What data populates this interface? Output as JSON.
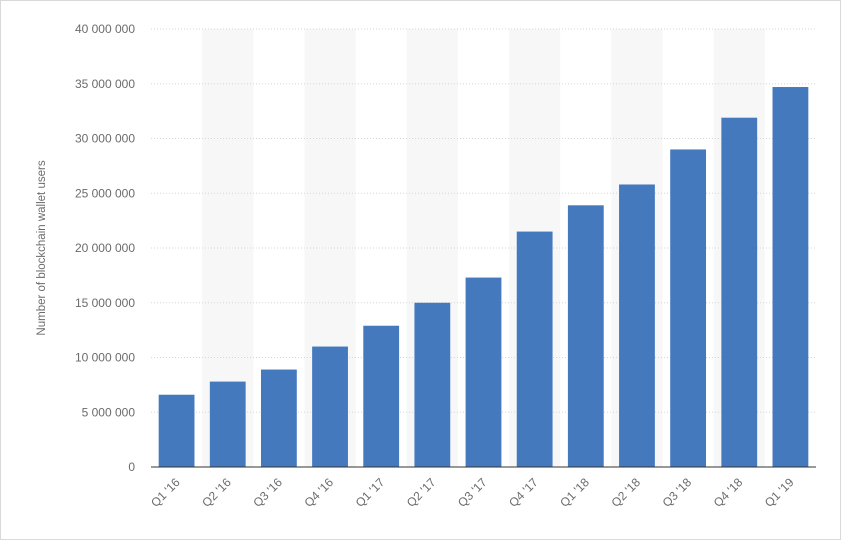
{
  "chart_data": {
    "type": "bar",
    "title": "",
    "xlabel": "",
    "ylabel": "Number of blockchain wallet users",
    "categories": [
      "Q1 '16",
      "Q2 '16",
      "Q3 '16",
      "Q4 '16",
      "Q1 '17",
      "Q2 '17",
      "Q3 '17",
      "Q4 '17",
      "Q1 '18",
      "Q2 '18",
      "Q3 '18",
      "Q4 '18",
      "Q1 '19"
    ],
    "values": [
      6600000,
      7800000,
      8900000,
      11000000,
      12900000,
      15000000,
      17300000,
      21500000,
      23900000,
      25800000,
      29000000,
      31900000,
      34700000
    ],
    "ylim": [
      0,
      40000000
    ],
    "y_ticks": [
      0,
      5000000,
      10000000,
      15000000,
      20000000,
      25000000,
      30000000,
      35000000,
      40000000
    ],
    "y_tick_labels": [
      "0",
      "5 000 000",
      "10 000 000",
      "15 000 000",
      "20 000 000",
      "25 000 000",
      "30 000 000",
      "35 000 000",
      "40 000 000"
    ],
    "grid": true,
    "legend": "none",
    "bar_color": "#4479be",
    "alternate_band_color": "#f7f7f7"
  }
}
